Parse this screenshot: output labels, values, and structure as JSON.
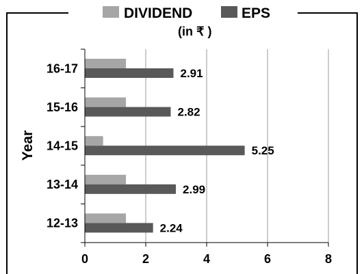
{
  "legend": {
    "items": [
      {
        "label": "DIVIDEND",
        "color": "#a6a6a6"
      },
      {
        "label": "EPS",
        "color": "#595959"
      }
    ],
    "unit": "(in ₹ )"
  },
  "chart_data": {
    "type": "bar",
    "orientation": "horizontal",
    "categories": [
      "12-13",
      "13-14",
      "14-15",
      "15-16",
      "16-17"
    ],
    "series": [
      {
        "name": "DIVIDEND",
        "values": [
          1.35,
          1.35,
          0.6,
          1.35,
          1.35
        ],
        "color": "#a6a6a6"
      },
      {
        "name": "EPS",
        "values": [
          2.24,
          2.99,
          5.25,
          2.82,
          2.91
        ],
        "color": "#595959",
        "data_labels": [
          "2.24",
          "2.99",
          "5.25",
          "2.82",
          "2.91"
        ]
      }
    ],
    "ylabel": "Year",
    "xlim": [
      0,
      8
    ],
    "xticks": [
      0,
      2,
      4,
      6,
      8
    ],
    "grid": true,
    "legend_position": "top"
  }
}
